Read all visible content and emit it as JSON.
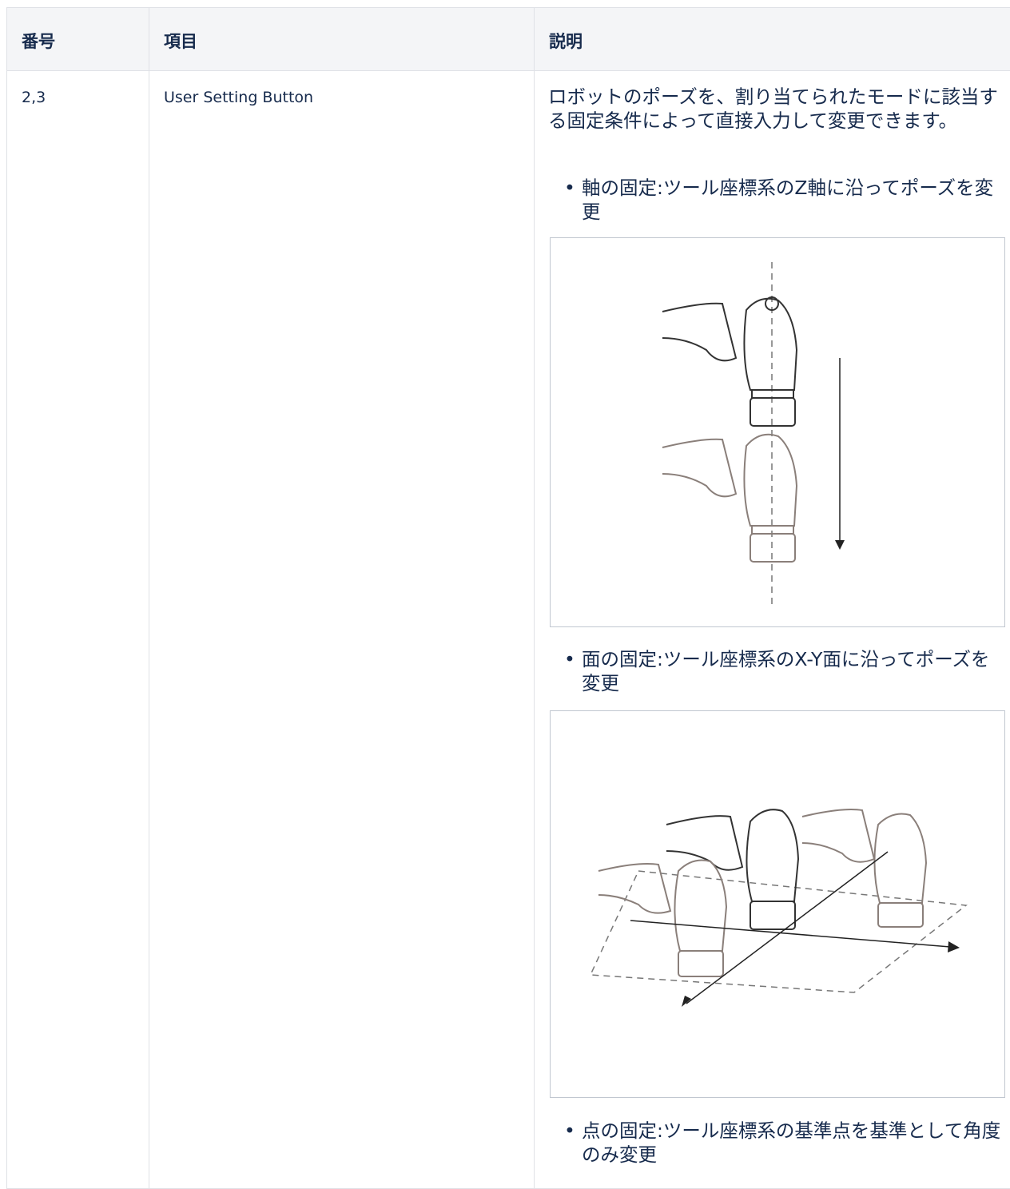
{
  "table": {
    "headers": [
      "番号",
      "項目",
      "説明"
    ],
    "rows": [
      {
        "number": "2,3",
        "item": "User Setting Button",
        "description": {
          "text": "ロボットのポーズを、割り当てられたモードに該当する固定条件によって直接入力して変更できます。",
          "bullets": [
            "軸の固定:ツール座標系のZ軸に沿ってポーズを変更",
            "面の固定:ツール座標系のX-Y面に沿ってポーズを変更",
            "点の固定:ツール座標系の基準点を基準として角度のみ変更"
          ]
        }
      }
    ]
  }
}
